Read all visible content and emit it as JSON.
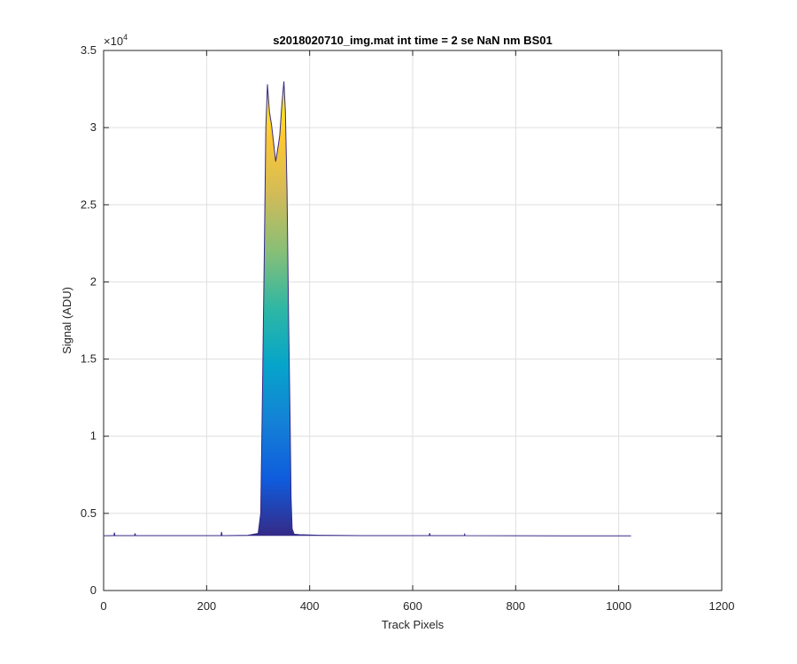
{
  "chart_data": {
    "type": "area",
    "title": "s2018020710_img.mat int time = 2 se  NaN nm BS01",
    "xlabel": "Track Pixels",
    "ylabel": "Signal (ADU)",
    "xlim": [
      0,
      1200
    ],
    "ylim": [
      0,
      35000
    ],
    "y_exponent_label": "×10",
    "y_exponent_power": "4",
    "xticks": [
      "0",
      "200",
      "400",
      "600",
      "800",
      "1000",
      "1200"
    ],
    "yticks": [
      "0",
      "0.5",
      "1",
      "1.5",
      "2",
      "2.5",
      "3",
      "3.5"
    ],
    "grid": true,
    "colormap": "parula",
    "colors": [
      "#352a87",
      "#0f5cdd",
      "#1481d6",
      "#06a4ca",
      "#2eb7a4",
      "#87bf77",
      "#d1bb59",
      "#fec832",
      "#f9fb0e"
    ],
    "line_color": "#352a87",
    "series": [
      {
        "x": [
          1,
          20,
          21,
          22,
          60,
          61,
          62,
          120,
          180,
          228,
          229,
          230,
          280,
          300,
          305,
          308,
          312,
          315,
          318,
          322,
          326,
          330,
          334,
          338,
          342,
          346,
          350,
          353,
          356,
          359,
          362,
          364,
          366,
          370,
          380,
          420,
          500,
          560,
          632,
          633,
          634,
          700,
          701,
          702,
          800,
          900,
          1000,
          1024
        ],
        "y": [
          3550,
          3560,
          3750,
          3560,
          3560,
          3700,
          3560,
          3555,
          3560,
          3560,
          3800,
          3560,
          3580,
          3700,
          5000,
          12000,
          22000,
          30000,
          32800,
          31000,
          30200,
          29000,
          27800,
          28600,
          29500,
          31500,
          33000,
          31000,
          26000,
          18000,
          11000,
          6000,
          4000,
          3650,
          3620,
          3580,
          3560,
          3555,
          3560,
          3720,
          3560,
          3560,
          3650,
          3560,
          3550,
          3545,
          3540,
          3540
        ]
      }
    ]
  }
}
